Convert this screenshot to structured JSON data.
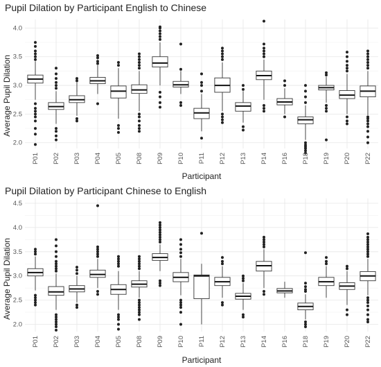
{
  "chart_data": [
    {
      "type": "boxplot",
      "title": "Pupil Dilation by Participant English to Chinese",
      "xlabel": "Participant",
      "ylabel": "Average Pupil Dilation",
      "ylim": [
        1.9,
        4.15
      ],
      "yticks": [
        2.0,
        2.5,
        3.0,
        3.5,
        4.0
      ],
      "categories": [
        "P01",
        "P02",
        "P03",
        "P04",
        "P05",
        "P08",
        "P09",
        "P10",
        "P11",
        "P12",
        "P13",
        "P14",
        "P16",
        "P18",
        "P19",
        "P20",
        "P22"
      ],
      "boxes": [
        {
          "whislo": 2.75,
          "q1": 3.04,
          "med": 3.11,
          "q3": 3.18,
          "whishi": 3.42,
          "fliers": [
            1.97,
            2.15,
            2.25,
            2.38,
            2.45,
            2.5,
            2.55,
            2.6,
            2.68,
            3.45,
            3.5,
            3.55,
            3.6,
            3.68,
            3.75
          ]
        },
        {
          "whislo": 2.33,
          "q1": 2.58,
          "med": 2.63,
          "q3": 2.7,
          "whishi": 2.9,
          "fliers": [
            2.05,
            2.12,
            2.2,
            2.25,
            2.95,
            3.0,
            3.05,
            3.12,
            3.2,
            3.3
          ]
        },
        {
          "whislo": 2.47,
          "q1": 2.7,
          "med": 2.75,
          "q3": 2.82,
          "whishi": 3.05,
          "fliers": [
            2.38,
            2.42,
            3.08,
            3.12
          ]
        },
        {
          "whislo": 2.85,
          "q1": 3.03,
          "med": 3.08,
          "q3": 3.14,
          "whishi": 3.35,
          "fliers": [
            2.68,
            3.38,
            3.42,
            3.48,
            3.52
          ]
        },
        {
          "whislo": 2.42,
          "q1": 2.78,
          "med": 2.9,
          "q3": 2.99,
          "whishi": 3.3,
          "fliers": [
            2.18,
            2.25,
            2.3,
            3.35,
            3.4
          ]
        },
        {
          "whislo": 2.55,
          "q1": 2.86,
          "med": 2.92,
          "q3": 3.01,
          "whishi": 3.25,
          "fliers": [
            2.2,
            2.25,
            2.3,
            2.38,
            2.45,
            2.5,
            3.3,
            3.35,
            3.4,
            3.45,
            3.5,
            3.55
          ]
        },
        {
          "whislo": 3.0,
          "q1": 3.32,
          "med": 3.39,
          "q3": 3.5,
          "whishi": 3.75,
          "fliers": [
            2.62,
            2.7,
            2.8,
            2.88,
            3.8,
            3.85,
            3.9,
            3.95,
            4.0,
            4.02
          ]
        },
        {
          "whislo": 2.85,
          "q1": 2.97,
          "med": 3.01,
          "q3": 3.07,
          "whishi": 3.25,
          "fliers": [
            2.65,
            2.7,
            3.28,
            3.72
          ]
        },
        {
          "whislo": 2.2,
          "q1": 2.42,
          "med": 2.52,
          "q3": 2.6,
          "whishi": 2.85,
          "fliers": [
            2.08,
            2.9,
            3.0,
            3.05,
            3.2
          ]
        },
        {
          "whislo": 2.55,
          "q1": 2.88,
          "med": 3.0,
          "q3": 3.13,
          "whishi": 3.4,
          "fliers": [
            2.35,
            2.4,
            2.45,
            2.5,
            3.45,
            3.5,
            3.55,
            3.6,
            3.65
          ]
        },
        {
          "whislo": 2.35,
          "q1": 2.55,
          "med": 2.64,
          "q3": 2.7,
          "whishi": 2.9,
          "fliers": [
            2.22,
            2.28,
            2.93,
            3.0
          ]
        },
        {
          "whislo": 2.75,
          "q1": 3.1,
          "med": 3.17,
          "q3": 3.25,
          "whishi": 3.45,
          "fliers": [
            2.55,
            2.6,
            2.65,
            3.5,
            3.55,
            3.6,
            3.65,
            3.72,
            4.12
          ]
        },
        {
          "whislo": 2.5,
          "q1": 2.66,
          "med": 2.71,
          "q3": 2.77,
          "whishi": 2.95,
          "fliers": [
            2.45,
            3.0,
            3.08
          ]
        },
        {
          "whislo": 2.05,
          "q1": 2.33,
          "med": 2.4,
          "q3": 2.45,
          "whishi": 2.65,
          "fliers": [
            1.82,
            1.86,
            1.9,
            1.93,
            1.96,
            2.0,
            2.7,
            2.8,
            2.9,
            3.0
          ]
        },
        {
          "whislo": 2.7,
          "q1": 2.92,
          "med": 2.96,
          "q3": 3.0,
          "whishi": 3.15,
          "fliers": [
            2.05,
            2.55,
            2.6,
            2.65,
            3.18,
            3.22
          ]
        },
        {
          "whislo": 2.5,
          "q1": 2.77,
          "med": 2.83,
          "q3": 2.91,
          "whishi": 3.2,
          "fliers": [
            2.33,
            2.38,
            2.45,
            3.25,
            3.3,
            3.35,
            3.42,
            3.5,
            3.58
          ]
        },
        {
          "whislo": 2.48,
          "q1": 2.8,
          "med": 2.9,
          "q3": 2.99,
          "whishi": 3.25,
          "fliers": [
            2.0,
            2.1,
            2.2,
            2.28,
            2.33,
            2.38,
            2.42,
            2.45,
            3.3,
            3.35,
            3.4,
            3.45,
            3.5,
            3.55,
            3.6
          ]
        }
      ]
    },
    {
      "type": "boxplot",
      "title": "Pupil Dilation by Participant Chinese to English",
      "xlabel": "Participant",
      "ylabel": "Average Pupil Dilation",
      "ylim": [
        1.85,
        4.6
      ],
      "yticks": [
        2.0,
        2.5,
        3.0,
        3.5,
        4.0,
        4.5
      ],
      "categories": [
        "P01",
        "P02",
        "P03",
        "P04",
        "P05",
        "P08",
        "P09",
        "P10",
        "P11",
        "P12",
        "P13",
        "P14",
        "P16",
        "P18",
        "P19",
        "P20",
        "P22"
      ],
      "boxes": [
        {
          "whislo": 2.7,
          "q1": 3.0,
          "med": 3.07,
          "q3": 3.15,
          "whishi": 3.4,
          "fliers": [
            2.4,
            2.45,
            2.5,
            2.55,
            2.6,
            3.45,
            3.5,
            3.55
          ]
        },
        {
          "whislo": 2.3,
          "q1": 2.6,
          "med": 2.67,
          "q3": 2.78,
          "whishi": 3.05,
          "fliers": [
            1.88,
            1.95,
            2.0,
            2.05,
            2.1,
            2.15,
            2.2,
            3.1,
            3.15,
            3.2,
            3.25,
            3.3,
            3.4,
            3.5,
            3.62,
            3.75
          ]
        },
        {
          "whislo": 2.45,
          "q1": 2.67,
          "med": 2.73,
          "q3": 2.8,
          "whishi": 3.0,
          "fliers": [
            2.35,
            2.4,
            3.05,
            3.12,
            3.18
          ]
        },
        {
          "whislo": 2.75,
          "q1": 2.97,
          "med": 3.03,
          "q3": 3.12,
          "whishi": 3.35,
          "fliers": [
            2.62,
            2.68,
            3.4,
            3.45,
            3.5,
            3.55,
            3.6,
            4.45
          ]
        },
        {
          "whislo": 2.3,
          "q1": 2.62,
          "med": 2.72,
          "q3": 2.82,
          "whishi": 3.1,
          "fliers": [
            1.9,
            2.0,
            2.1,
            2.15,
            2.2,
            3.2,
            3.25,
            3.3,
            3.35,
            3.4
          ]
        },
        {
          "whislo": 2.55,
          "q1": 2.77,
          "med": 2.83,
          "q3": 2.9,
          "whishi": 3.1,
          "fliers": [
            2.1,
            2.2,
            2.25,
            2.3,
            2.35,
            2.4,
            2.45,
            2.5,
            3.15,
            3.2,
            3.25,
            3.3,
            3.35,
            3.4
          ]
        },
        {
          "whislo": 3.1,
          "q1": 3.32,
          "med": 3.38,
          "q3": 3.46,
          "whishi": 3.65,
          "fliers": [
            2.8,
            2.85,
            2.9,
            3.7,
            3.75,
            3.8,
            3.85,
            3.9,
            3.95,
            4.0,
            4.05,
            4.1
          ]
        },
        {
          "whislo": 2.6,
          "q1": 2.88,
          "med": 2.97,
          "q3": 3.07,
          "whishi": 3.35,
          "fliers": [
            2.0,
            2.25,
            2.35,
            2.4,
            2.45,
            2.5,
            3.4,
            3.48,
            3.55,
            3.65,
            3.75
          ]
        },
        {
          "whislo": 2.0,
          "q1": 2.53,
          "med": 3.0,
          "q3": 3.02,
          "whishi": 3.25,
          "fliers": [
            3.88
          ]
        },
        {
          "whislo": 2.55,
          "q1": 2.8,
          "med": 2.88,
          "q3": 2.97,
          "whishi": 3.2,
          "fliers": [
            2.4,
            2.45,
            3.25,
            3.3,
            3.38
          ]
        },
        {
          "whislo": 2.3,
          "q1": 2.52,
          "med": 2.58,
          "q3": 2.64,
          "whishi": 2.85,
          "fliers": [
            2.15,
            2.2,
            2.9,
            2.95,
            3.0
          ]
        },
        {
          "whislo": 2.75,
          "q1": 3.1,
          "med": 3.21,
          "q3": 3.3,
          "whishi": 3.55,
          "fliers": [
            2.62,
            2.68,
            3.6,
            3.65,
            3.7,
            3.75,
            3.8
          ]
        },
        {
          "whislo": 2.55,
          "q1": 2.65,
          "med": 2.69,
          "q3": 2.74,
          "whishi": 2.88,
          "fliers": []
        },
        {
          "whislo": 2.1,
          "q1": 2.3,
          "med": 2.37,
          "q3": 2.44,
          "whishi": 2.62,
          "fliers": [
            1.95,
            2.0,
            2.05,
            2.68,
            2.72,
            2.78,
            2.85,
            3.48
          ]
        },
        {
          "whislo": 2.55,
          "q1": 2.8,
          "med": 2.88,
          "q3": 2.97,
          "whishi": 3.2,
          "fliers": [
            3.25,
            3.3,
            3.38
          ]
        },
        {
          "whislo": 2.4,
          "q1": 2.72,
          "med": 2.79,
          "q3": 2.86,
          "whishi": 3.1,
          "fliers": [
            2.2,
            2.3,
            3.15,
            3.2
          ]
        },
        {
          "whislo": 2.6,
          "q1": 2.9,
          "med": 3.0,
          "q3": 3.09,
          "whishi": 3.35,
          "fliers": [
            2.05,
            2.1,
            2.2,
            2.3,
            2.38,
            2.45,
            2.5,
            2.55,
            3.4,
            3.45,
            3.5,
            3.55,
            3.6,
            3.65,
            3.7,
            3.75,
            3.8,
            3.87
          ]
        }
      ]
    }
  ]
}
